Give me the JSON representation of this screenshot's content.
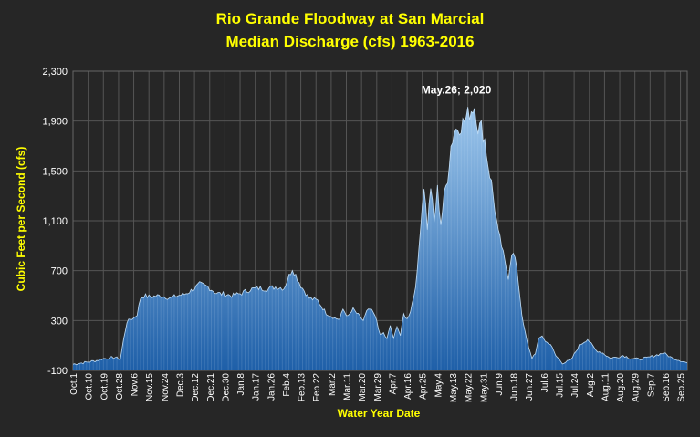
{
  "chart_data": {
    "type": "area",
    "title_lines": [
      "Rio Grande Floodway at San Marcial",
      "Median Discharge (cfs) 1963-2016"
    ],
    "xlabel": "Water Year Date",
    "ylabel": "Cubic Feet per Second (cfs)",
    "ylim": [
      -100,
      2300
    ],
    "yticks": [
      -100,
      300,
      700,
      1100,
      1500,
      1900,
      2300
    ],
    "ytick_labels": [
      "-100",
      "300",
      "700",
      "1,100",
      "1,500",
      "1,900",
      "2,300"
    ],
    "xtick_labels": [
      "Oct.1",
      "Oct.10",
      "Oct.19",
      "Oct.28",
      "Nov.6",
      "Nov.15",
      "Nov.24",
      "Dec.3",
      "Dec.12",
      "Dec.21",
      "Dec.30",
      "Jan.8",
      "Jan.17",
      "Jan.26",
      "Feb.4",
      "Feb.13",
      "Feb.22",
      "Mar.2",
      "Mar.11",
      "Mar.20",
      "Mar.29",
      "Apr.7",
      "Apr.16",
      "Apr.25",
      "May.4",
      "May.13",
      "May.22",
      "May.31",
      "Jun.9",
      "Jun.18",
      "Jun.27",
      "Jul.6",
      "Jul.15",
      "Jul.24",
      "Aug.2",
      "Aug.11",
      "Aug.20",
      "Aug.29",
      "Sep.7",
      "Sep.16",
      "Sep.25"
    ],
    "annotation": {
      "text": "May.26; 2,020",
      "day": 238,
      "value": 2020
    },
    "grid": true,
    "legend": "none",
    "colors": {
      "background": "#262626",
      "title": "#FFFF00",
      "axis_text": "#FFFFFF",
      "grid": "#555555",
      "fill_top": "#9CC6EC",
      "fill_bottom": "#1E5FA8"
    },
    "series": [
      {
        "x_days": [
          0,
          5,
          10,
          14,
          18,
          22,
          25,
          28,
          30,
          32,
          34,
          36,
          38,
          40,
          42,
          45,
          48,
          52,
          55,
          58,
          62,
          66,
          70,
          75,
          80,
          85,
          90,
          95,
          100,
          105,
          110,
          115,
          120,
          125,
          130,
          135,
          140,
          145,
          150,
          155,
          158,
          160,
          163,
          166,
          170,
          172,
          174,
          176,
          178,
          180,
          182,
          184,
          186,
          188,
          190,
          192,
          194,
          196,
          198,
          200,
          202,
          204,
          206,
          208,
          210,
          212,
          214,
          216,
          218,
          220,
          222,
          224,
          226,
          228,
          230,
          232,
          234,
          236,
          237,
          238,
          239,
          240,
          242,
          244,
          246,
          248,
          250,
          252,
          254,
          256,
          258,
          260,
          262,
          264,
          266,
          268,
          270,
          272,
          274,
          276,
          278,
          280,
          283,
          286,
          290,
          295,
          300,
          305,
          310,
          314,
          318,
          322,
          326,
          330,
          335,
          340,
          345,
          350,
          355,
          360,
          364
        ],
        "values": [
          -50,
          -40,
          -30,
          -20,
          -5,
          0,
          5,
          -10,
          150,
          290,
          310,
          320,
          350,
          480,
          500,
          490,
          495,
          500,
          490,
          480,
          500,
          510,
          540,
          590,
          570,
          520,
          510,
          500,
          520,
          550,
          560,
          555,
          570,
          560,
          720,
          580,
          480,
          460,
          360,
          320,
          310,
          390,
          330,
          390,
          330,
          300,
          370,
          390,
          360,
          300,
          180,
          200,
          150,
          260,
          150,
          260,
          180,
          350,
          310,
          380,
          500,
          680,
          1080,
          1390,
          1050,
          1380,
          1080,
          1350,
          1080,
          1300,
          1450,
          1700,
          1820,
          1850,
          1870,
          1900,
          1950,
          1990,
          2010,
          2020,
          1950,
          1850,
          1850,
          1750,
          1550,
          1400,
          1200,
          1000,
          900,
          760,
          650,
          850,
          800,
          600,
          350,
          200,
          80,
          0,
          40,
          150,
          180,
          130,
          110,
          20,
          -40,
          -20,
          100,
          150,
          60,
          40,
          0,
          5,
          20,
          0,
          -10,
          0,
          20,
          40,
          0,
          -20,
          -40
        ]
      }
    ]
  }
}
